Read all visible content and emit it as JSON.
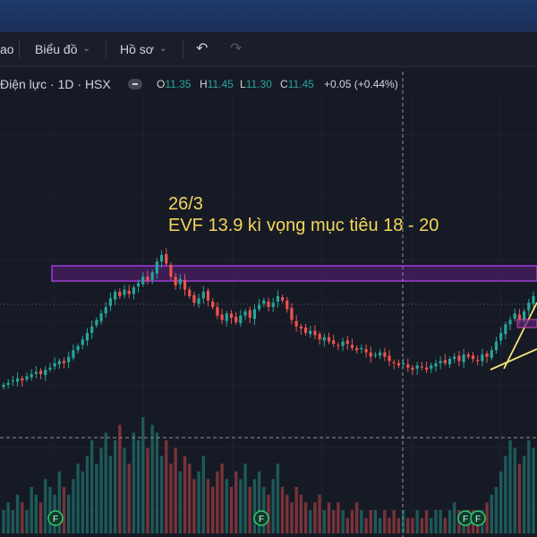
{
  "toolbar": {
    "partial_label": "ao",
    "chart_menu": "Biểu đồ",
    "profile_menu": "Hồ sơ"
  },
  "legend": {
    "symbol": "Điện lực · 1D · HSX",
    "o_label": "O",
    "o_value": "11.35",
    "h_label": "H",
    "h_value": "11.45",
    "l_label": "L",
    "l_value": "11.30",
    "c_label": "C",
    "c_value": "11.45",
    "change": "+0.05 (+0.44%)"
  },
  "annotation": {
    "line1": "26/3",
    "line2": "EVF 13.9 kì vọng mục tiêu 18 - 20"
  },
  "colors": {
    "up": "#26a69a",
    "down": "#ef5350",
    "zone_fill": "#5b1f7a",
    "zone_border": "#9c3cd6",
    "note": "#f5d65a"
  },
  "markers": [
    "F",
    "F",
    "F",
    "F"
  ],
  "chart_data": {
    "type": "candlestick",
    "resistance_zone": [
      14.9,
      15.4
    ],
    "close": [
      10.2,
      10.3,
      10.4,
      10.5,
      10.4,
      10.6,
      10.7,
      10.8,
      10.7,
      10.9,
      11.0,
      11.2,
      11.3,
      11.2,
      11.5,
      11.8,
      12.0,
      12.3,
      12.6,
      12.9,
      13.2,
      13.5,
      13.8,
      14.2,
      14.5,
      14.3,
      14.6,
      14.4,
      14.7,
      14.9,
      15.2,
      15.0,
      15.4,
      15.9,
      16.2,
      15.8,
      15.2,
      14.8,
      15.1,
      14.6,
      14.3,
      14.0,
      14.2,
      14.5,
      14.1,
      13.8,
      13.4,
      13.2,
      13.5,
      13.3,
      13.1,
      13.4,
      13.6,
      13.3,
      13.7,
      13.9,
      14.1,
      13.8,
      14.0,
      14.3,
      14.1,
      13.7,
      13.2,
      12.9,
      12.8,
      12.6,
      12.7,
      12.5,
      12.3,
      12.4,
      12.2,
      12.1,
      12.0,
      12.2,
      12.1,
      11.9,
      11.8,
      11.9,
      11.7,
      11.5,
      11.6,
      11.7,
      11.5,
      11.3,
      11.2,
      11.1,
      11.2,
      11.0,
      10.9,
      11.1,
      11.0,
      10.9,
      11.1,
      11.2,
      11.3,
      11.2,
      11.4,
      11.5,
      11.3,
      11.6,
      11.5,
      11.4,
      11.3,
      11.6,
      11.5,
      11.8,
      12.2,
      12.6,
      13.0,
      13.2,
      13.5,
      13.1,
      13.6,
      14.0,
      14.3
    ],
    "volume": [
      3,
      4,
      3,
      5,
      4,
      3,
      6,
      5,
      4,
      7,
      6,
      5,
      8,
      6,
      5,
      7,
      9,
      8,
      10,
      12,
      9,
      11,
      13,
      10,
      12,
      14,
      11,
      9,
      13,
      12,
      15,
      11,
      14,
      13,
      10,
      12,
      9,
      11,
      8,
      10,
      9,
      7,
      8,
      10,
      7,
      6,
      8,
      9,
      7,
      6,
      8,
      7,
      9,
      6,
      7,
      8,
      6,
      5,
      7,
      9,
      6,
      5,
      4,
      6,
      5,
      4,
      3,
      4,
      5,
      3,
      4,
      3,
      4,
      3,
      2,
      3,
      4,
      3,
      2,
      3,
      3,
      2,
      3,
      2,
      3,
      2,
      3,
      2,
      2,
      3,
      2,
      3,
      2,
      3,
      3,
      2,
      3,
      4,
      3,
      2,
      3,
      3,
      2,
      3,
      4,
      5,
      6,
      8,
      10,
      12,
      11,
      9,
      10,
      12,
      11
    ]
  }
}
